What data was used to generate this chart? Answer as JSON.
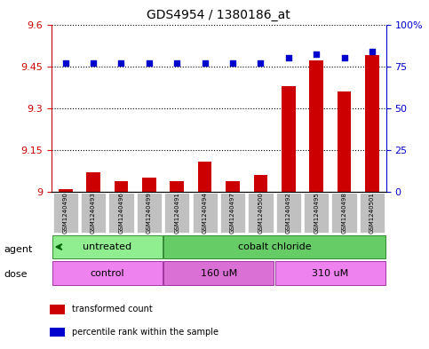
{
  "title": "GDS4954 / 1380186_at",
  "samples": [
    "GSM1240490",
    "GSM1240493",
    "GSM1240496",
    "GSM1240499",
    "GSM1240491",
    "GSM1240494",
    "GSM1240497",
    "GSM1240500",
    "GSM1240492",
    "GSM1240495",
    "GSM1240498",
    "GSM1240501"
  ],
  "transformed_count": [
    9.01,
    9.07,
    9.04,
    9.05,
    9.04,
    9.11,
    9.04,
    9.06,
    9.38,
    9.47,
    9.36,
    9.49
  ],
  "percentile_rank": [
    77,
    77,
    77,
    77,
    77,
    77,
    77,
    77,
    80,
    82,
    80,
    84
  ],
  "ylim_left": [
    9.0,
    9.6
  ],
  "ylim_right": [
    0,
    100
  ],
  "yticks_left": [
    9.0,
    9.15,
    9.3,
    9.45,
    9.6
  ],
  "yticks_right": [
    0,
    25,
    50,
    75,
    100
  ],
  "ytick_labels_left": [
    "9",
    "9.15",
    "9.3",
    "9.45",
    "9.6"
  ],
  "ytick_labels_right": [
    "0",
    "25",
    "50",
    "75",
    "100%"
  ],
  "agent_groups": [
    {
      "label": "untreated",
      "start": 0,
      "end": 4,
      "color": "#90EE90"
    },
    {
      "label": "cobalt chloride",
      "start": 4,
      "end": 12,
      "color": "#66CC66"
    }
  ],
  "dose_groups": [
    {
      "label": "control",
      "start": 0,
      "end": 4,
      "color": "#EE82EE"
    },
    {
      "label": "160 uM",
      "start": 4,
      "end": 8,
      "color": "#DA70D6"
    },
    {
      "label": "310 uM",
      "start": 8,
      "end": 12,
      "color": "#EE82EE"
    }
  ],
  "bar_color": "#CC0000",
  "dot_color": "#0000CC",
  "sample_bg_color": "#C0C0C0",
  "axis_left_color": "#CC0000",
  "axis_right_color": "#0000CC",
  "legend_items": [
    {
      "color": "#CC0000",
      "label": "transformed count"
    },
    {
      "color": "#0000CC",
      "label": "percentile rank within the sample"
    }
  ]
}
